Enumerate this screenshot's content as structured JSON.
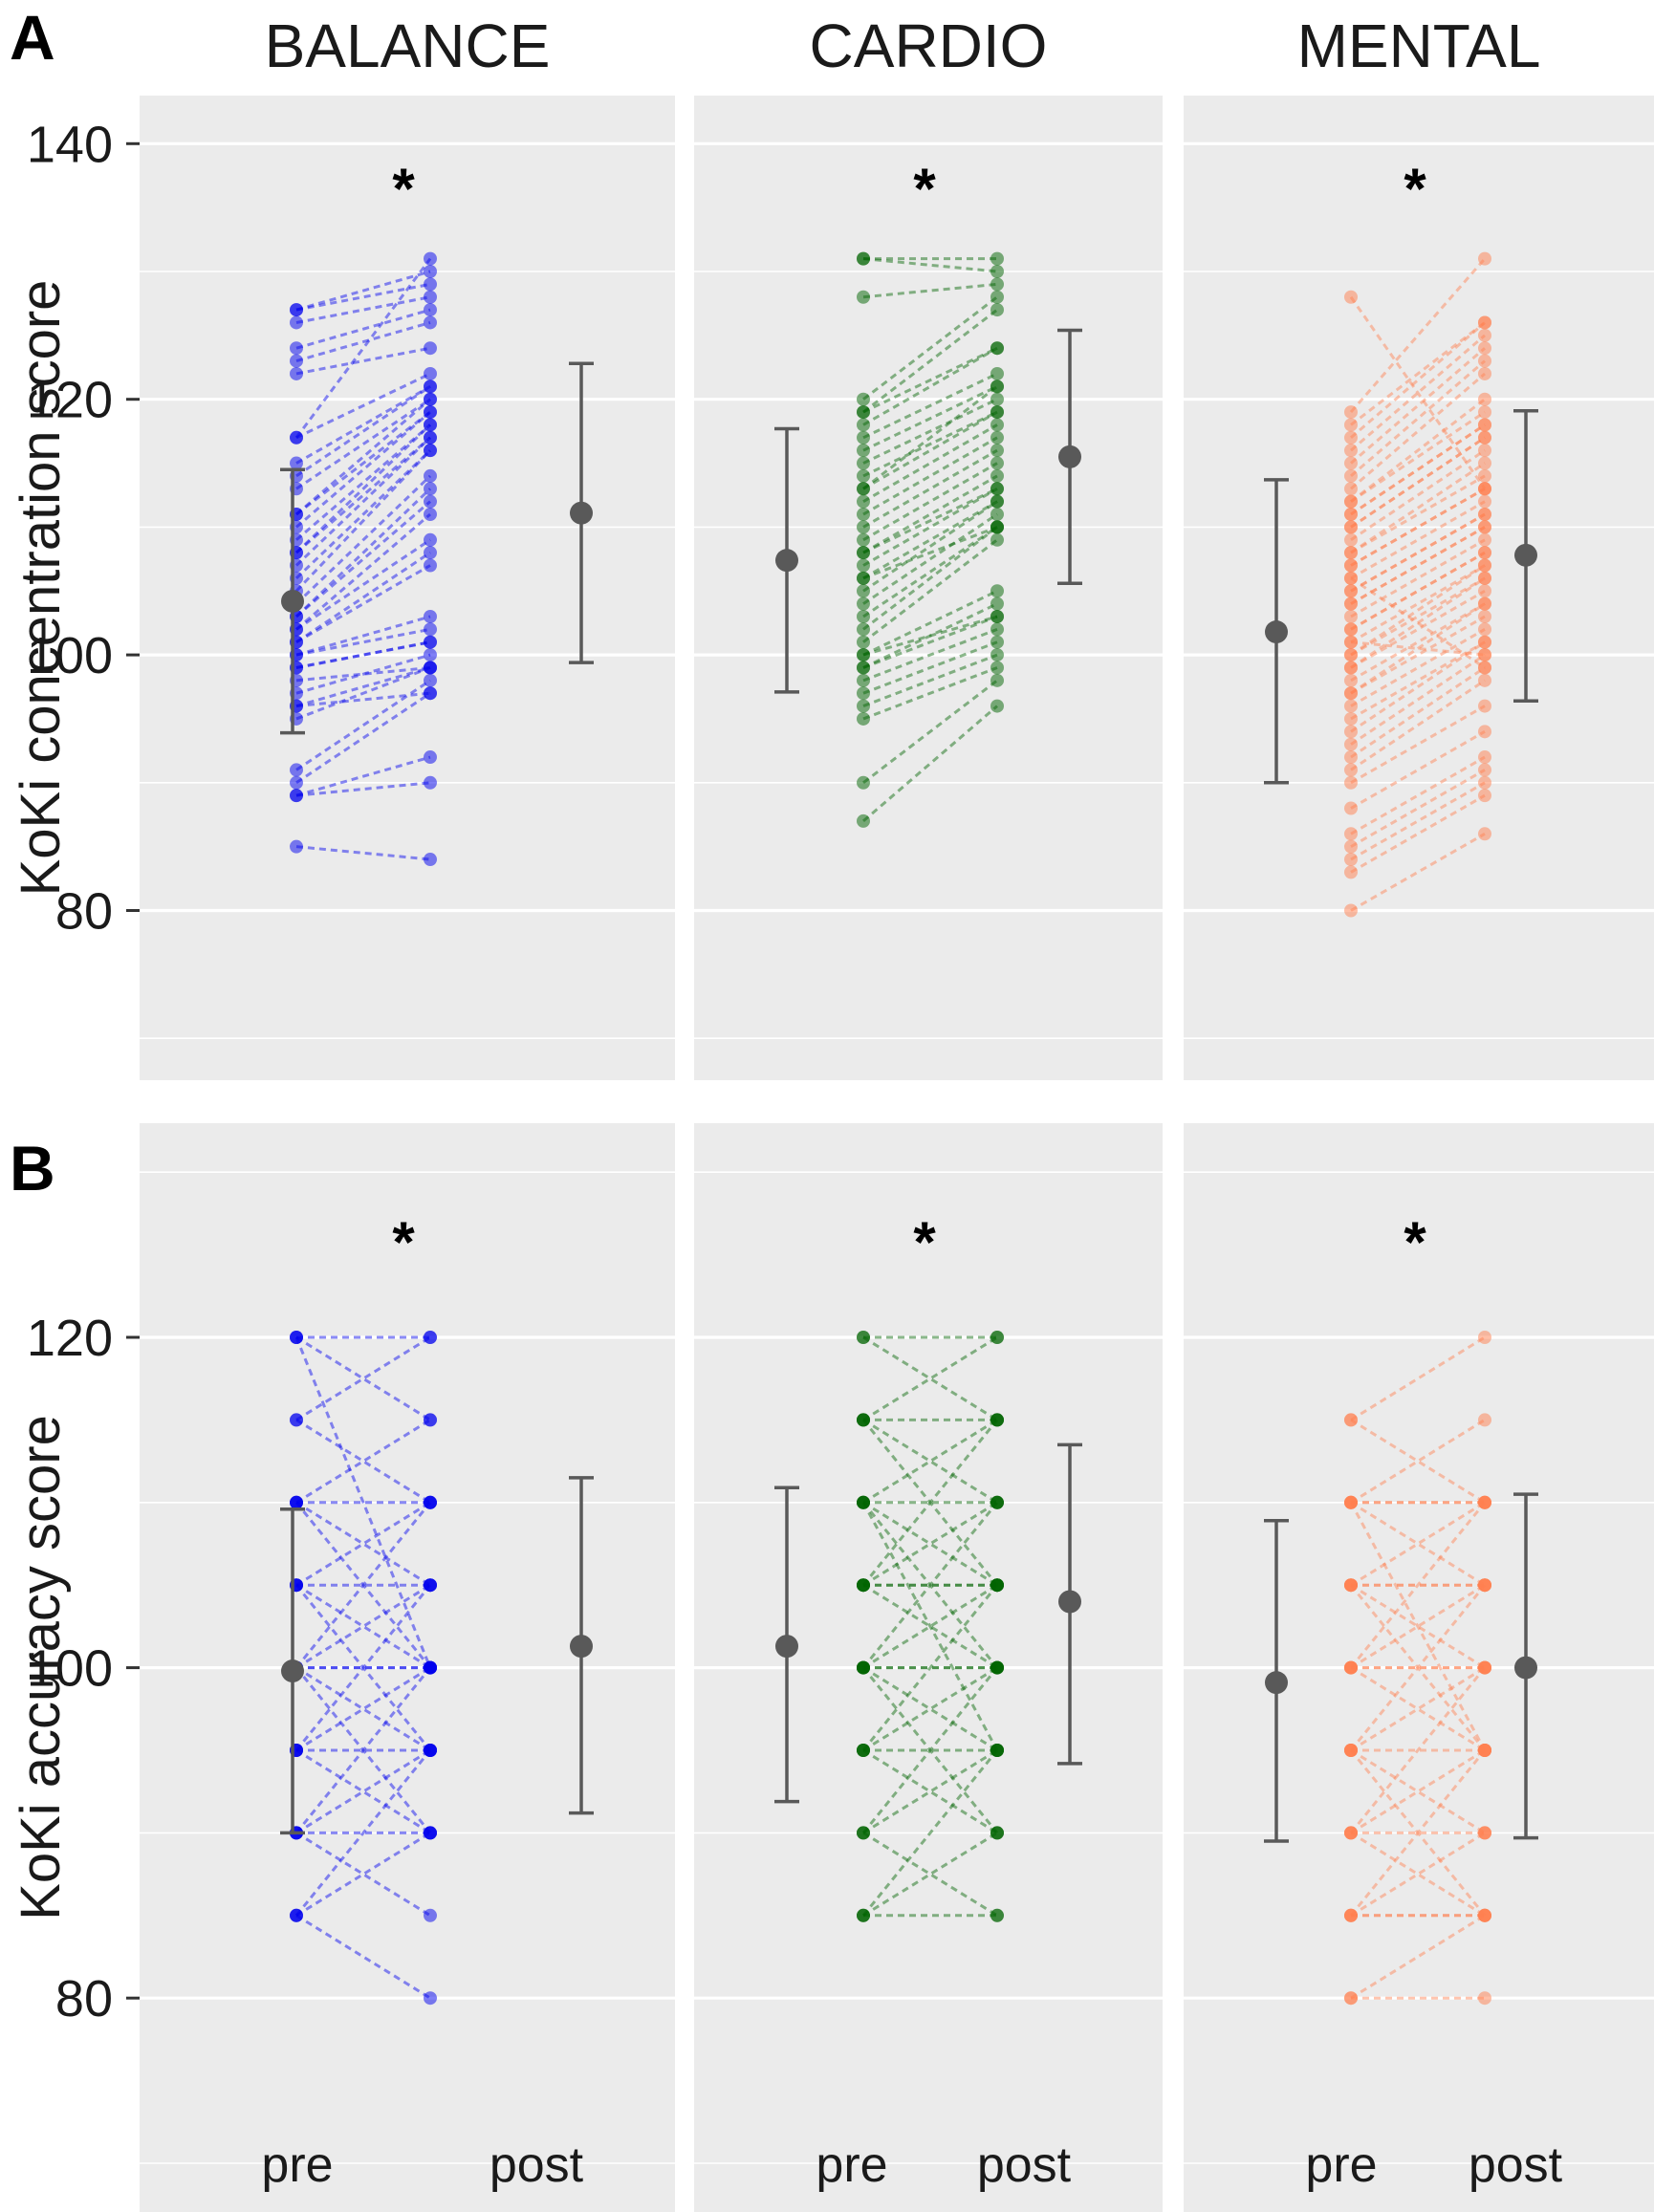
{
  "colors": {
    "BALANCE": "#0000ee",
    "CARDIO": "#006400",
    "MENTAL": "#ff7f50",
    "summary": "#595959"
  },
  "chart_data": [
    {
      "type": "scatter",
      "panel_letter": "A",
      "title": "",
      "xlabel": "",
      "ylabel": "KoKi concentration score",
      "x_categories": [
        "pre",
        "post"
      ],
      "ylim": [
        70,
        145
      ],
      "y_ticks": [
        80,
        100,
        120,
        140
      ],
      "facets": [
        {
          "name": "BALANCE",
          "significance": "*",
          "summary": {
            "pre": {
              "mean": 104.2,
              "lower": 93.9,
              "upper": 114.5
            },
            "post": {
              "mean": 111.1,
              "lower": 99.4,
              "upper": 122.8
            }
          },
          "pairs": [
            [
              85,
              84
            ],
            [
              89,
              90
            ],
            [
              89,
              92
            ],
            [
              90,
              97
            ],
            [
              91,
              98
            ],
            [
              95,
              99
            ],
            [
              96,
              99
            ],
            [
              96,
              97
            ],
            [
              97,
              100
            ],
            [
              98,
              99
            ],
            [
              99,
              101
            ],
            [
              99,
              101
            ],
            [
              100,
              102
            ],
            [
              100,
              103
            ],
            [
              101,
              107
            ],
            [
              101,
              108
            ],
            [
              102,
              109
            ],
            [
              102,
              111
            ],
            [
              103,
              112
            ],
            [
              103,
              113
            ],
            [
              104,
              114
            ],
            [
              105,
              116
            ],
            [
              106,
              116
            ],
            [
              107,
              117
            ],
            [
              108,
              117
            ],
            [
              108,
              118
            ],
            [
              109,
              118
            ],
            [
              110,
              119
            ],
            [
              111,
              119
            ],
            [
              111,
              120
            ],
            [
              113,
              120
            ],
            [
              114,
              121
            ],
            [
              115,
              121
            ],
            [
              117,
              122
            ],
            [
              122,
              124
            ],
            [
              123,
              126
            ],
            [
              124,
              127
            ],
            [
              126,
              128
            ],
            [
              127,
              129
            ],
            [
              127,
              130
            ],
            [
              117,
              131
            ]
          ]
        },
        {
          "name": "CARDIO",
          "significance": "*",
          "summary": {
            "pre": {
              "mean": 107.4,
              "lower": 97.1,
              "upper": 117.7
            },
            "post": {
              "mean": 115.5,
              "lower": 105.6,
              "upper": 125.4
            }
          },
          "pairs": [
            [
              87,
              96
            ],
            [
              90,
              98
            ],
            [
              95,
              99
            ],
            [
              96,
              100
            ],
            [
              97,
              101
            ],
            [
              98,
              102
            ],
            [
              99,
              103
            ],
            [
              99,
              104
            ],
            [
              100,
              105
            ],
            [
              101,
              109
            ],
            [
              102,
              110
            ],
            [
              103,
              110
            ],
            [
              104,
              111
            ],
            [
              105,
              112
            ],
            [
              106,
              112
            ],
            [
              107,
              113
            ],
            [
              108,
              113
            ],
            [
              108,
              114
            ],
            [
              109,
              115
            ],
            [
              110,
              116
            ],
            [
              111,
              117
            ],
            [
              112,
              118
            ],
            [
              113,
              119
            ],
            [
              114,
              119
            ],
            [
              115,
              120
            ],
            [
              116,
              121
            ],
            [
              117,
              122
            ],
            [
              118,
              124
            ],
            [
              119,
              124
            ],
            [
              119,
              127
            ],
            [
              128,
              129
            ],
            [
              131,
              130
            ],
            [
              131,
              131
            ],
            [
              120,
              128
            ],
            [
              113,
              121
            ],
            [
              106,
              110
            ],
            [
              100,
              103
            ]
          ]
        },
        {
          "name": "MENTAL",
          "significance": "*",
          "summary": {
            "pre": {
              "mean": 101.8,
              "lower": 90.0,
              "upper": 113.7
            },
            "post": {
              "mean": 107.8,
              "lower": 96.4,
              "upper": 119.1
            }
          },
          "pairs": [
            [
              80,
              86
            ],
            [
              83,
              89
            ],
            [
              84,
              90
            ],
            [
              85,
              91
            ],
            [
              86,
              92
            ],
            [
              88,
              94
            ],
            [
              90,
              96
            ],
            [
              91,
              98
            ],
            [
              92,
              99
            ],
            [
              93,
              100
            ],
            [
              94,
              101
            ],
            [
              95,
              101
            ],
            [
              96,
              102
            ],
            [
              97,
              103
            ],
            [
              97,
              104
            ],
            [
              98,
              104
            ],
            [
              99,
              105
            ],
            [
              99,
              106
            ],
            [
              100,
              106
            ],
            [
              100,
              107
            ],
            [
              101,
              107
            ],
            [
              102,
              108
            ],
            [
              102,
              108
            ],
            [
              103,
              109
            ],
            [
              104,
              110
            ],
            [
              104,
              110
            ],
            [
              105,
              111
            ],
            [
              105,
              111
            ],
            [
              106,
              112
            ],
            [
              107,
              113
            ],
            [
              107,
              113
            ],
            [
              108,
              114
            ],
            [
              108,
              115
            ],
            [
              109,
              116
            ],
            [
              110,
              117
            ],
            [
              110,
              117
            ],
            [
              111,
              118
            ],
            [
              111,
              118
            ],
            [
              112,
              119
            ],
            [
              112,
              120
            ],
            [
              113,
              122
            ],
            [
              114,
              123
            ],
            [
              115,
              124
            ],
            [
              116,
              125
            ],
            [
              117,
              126
            ],
            [
              118,
              126
            ],
            [
              119,
              131
            ],
            [
              128,
              113
            ],
            [
              101,
              100
            ],
            [
              106,
              99
            ]
          ]
        }
      ]
    },
    {
      "type": "scatter",
      "panel_letter": "B",
      "title": "",
      "xlabel": "",
      "ylabel": "KoKi accuracy score",
      "x_categories": [
        "pre",
        "post"
      ],
      "ylim": [
        70,
        131
      ],
      "y_ticks": [
        80,
        100,
        120
      ],
      "facets": [
        {
          "name": "BALANCE",
          "significance": "*",
          "summary": {
            "pre": {
              "mean": 99.8,
              "lower": 90.0,
              "upper": 109.6
            },
            "post": {
              "mean": 101.3,
              "lower": 91.2,
              "upper": 111.5
            }
          },
          "pairs": [
            [
              85,
              80
            ],
            [
              85,
              90
            ],
            [
              90,
              85
            ],
            [
              90,
              95
            ],
            [
              90,
              100
            ],
            [
              95,
              90
            ],
            [
              95,
              100
            ],
            [
              95,
              105
            ],
            [
              100,
              95
            ],
            [
              100,
              100
            ],
            [
              100,
              100
            ],
            [
              100,
              105
            ],
            [
              100,
              110
            ],
            [
              105,
              95
            ],
            [
              105,
              100
            ],
            [
              105,
              110
            ],
            [
              110,
              100
            ],
            [
              110,
              105
            ],
            [
              110,
              115
            ],
            [
              115,
              110
            ],
            [
              115,
              120
            ],
            [
              120,
              115
            ],
            [
              120,
              100
            ],
            [
              120,
              120
            ],
            [
              90,
              90
            ],
            [
              100,
              90
            ],
            [
              95,
              95
            ],
            [
              105,
              105
            ],
            [
              110,
              110
            ],
            [
              85,
              95
            ]
          ]
        },
        {
          "name": "CARDIO",
          "significance": "*",
          "summary": {
            "pre": {
              "mean": 101.3,
              "lower": 91.9,
              "upper": 110.9
            },
            "post": {
              "mean": 104.0,
              "lower": 94.2,
              "upper": 113.5
            }
          },
          "pairs": [
            [
              85,
              85
            ],
            [
              85,
              90
            ],
            [
              85,
              95
            ],
            [
              90,
              85
            ],
            [
              90,
              95
            ],
            [
              90,
              100
            ],
            [
              95,
              90
            ],
            [
              95,
              95
            ],
            [
              95,
              100
            ],
            [
              95,
              105
            ],
            [
              100,
              95
            ],
            [
              100,
              100
            ],
            [
              100,
              100
            ],
            [
              100,
              105
            ],
            [
              100,
              110
            ],
            [
              105,
              100
            ],
            [
              105,
              105
            ],
            [
              105,
              105
            ],
            [
              105,
              110
            ],
            [
              105,
              115
            ],
            [
              110,
              100
            ],
            [
              110,
              105
            ],
            [
              110,
              110
            ],
            [
              110,
              115
            ],
            [
              115,
              105
            ],
            [
              115,
              110
            ],
            [
              115,
              115
            ],
            [
              115,
              120
            ],
            [
              120,
              115
            ],
            [
              120,
              120
            ],
            [
              100,
              90
            ],
            [
              110,
              95
            ]
          ]
        },
        {
          "name": "MENTAL",
          "significance": "*",
          "summary": {
            "pre": {
              "mean": 99.1,
              "lower": 89.5,
              "upper": 108.9
            },
            "post": {
              "mean": 100.0,
              "lower": 89.7,
              "upper": 110.5
            }
          },
          "pairs": [
            [
              80,
              80
            ],
            [
              80,
              85
            ],
            [
              85,
              85
            ],
            [
              85,
              85
            ],
            [
              85,
              90
            ],
            [
              85,
              95
            ],
            [
              90,
              85
            ],
            [
              90,
              90
            ],
            [
              90,
              95
            ],
            [
              90,
              100
            ],
            [
              95,
              90
            ],
            [
              95,
              95
            ],
            [
              95,
              100
            ],
            [
              95,
              105
            ],
            [
              100,
              95
            ],
            [
              100,
              100
            ],
            [
              100,
              100
            ],
            [
              100,
              105
            ],
            [
              100,
              110
            ],
            [
              105,
              100
            ],
            [
              105,
              105
            ],
            [
              105,
              105
            ],
            [
              105,
              110
            ],
            [
              110,
              105
            ],
            [
              110,
              110
            ],
            [
              110,
              110
            ],
            [
              110,
              115
            ],
            [
              110,
              95
            ],
            [
              115,
              110
            ],
            [
              115,
              120
            ],
            [
              105,
              95
            ],
            [
              95,
              85
            ]
          ]
        }
      ]
    }
  ]
}
